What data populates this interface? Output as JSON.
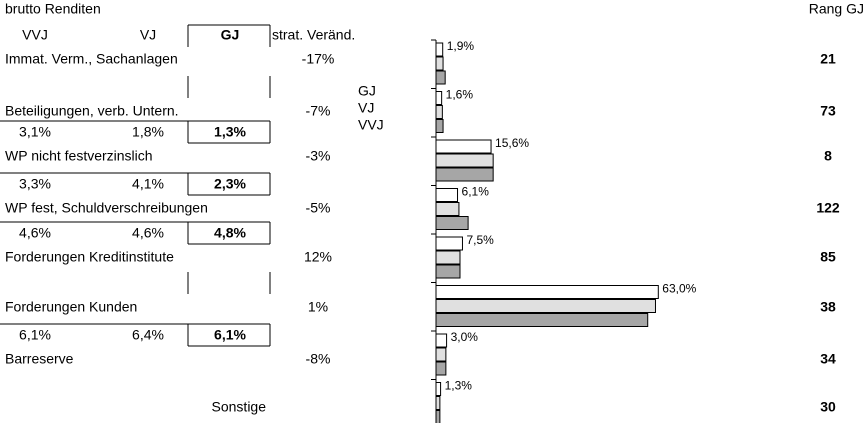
{
  "header": {
    "title": "brutto Renditen",
    "rank_title": "Rang GJ"
  },
  "columns": [
    "VVJ",
    "VJ",
    "GJ",
    "strat. Veränd."
  ],
  "legend": [
    {
      "name": "GJ",
      "color": "#ffffff"
    },
    {
      "name": "VJ",
      "color": "#e0e0e0"
    },
    {
      "name": "VVJ",
      "color": "#a6a6a6"
    }
  ],
  "xlim": [
    0,
    70
  ],
  "rows": [
    {
      "label": "Immat. Verm., Sachanlagen",
      "strat": "-17%",
      "bars": [
        1.9,
        2.0,
        2.6
      ],
      "value_label": "1,9%",
      "rank": "21"
    },
    {
      "label": "Beteiligungen, verb. Untern.",
      "strat": "-7%",
      "bars": [
        1.6,
        1.8,
        2.0
      ],
      "value_label": "1,6%",
      "rank": "73"
    },
    {
      "label": "WP nicht festverzinslich",
      "returns": [
        "3,1%",
        "1,8%",
        "1,3%"
      ],
      "strat": "-3%",
      "bars": [
        15.6,
        16.2,
        16.2
      ],
      "value_label": "15,6%",
      "rank": "8"
    },
    {
      "label": "WP fest, Schuldverschreibungen",
      "returns": [
        "3,3%",
        "4,1%",
        "2,3%"
      ],
      "strat": "-5%",
      "bars": [
        6.1,
        6.5,
        9.1
      ],
      "value_label": "6,1%",
      "rank": "122"
    },
    {
      "label": "Forderungen Kreditinstitute",
      "returns": [
        "4,6%",
        "4,6%",
        "4,8%"
      ],
      "strat": "12%",
      "bars": [
        7.5,
        6.8,
        6.8
      ],
      "value_label": "7,5%",
      "rank": "85"
    },
    {
      "label": "Forderungen Kunden",
      "strat": "1%",
      "bars": [
        63.0,
        62.2,
        60.0
      ],
      "value_label": "63,0%",
      "rank": "38"
    },
    {
      "label": "Barreserve",
      "returns": [
        "6,1%",
        "6,4%",
        "6,1%"
      ],
      "strat": "-8%",
      "bars": [
        3.0,
        2.8,
        2.8
      ],
      "value_label": "3,0%",
      "rank": "34"
    },
    {
      "label": "Sonstige",
      "bars": [
        1.3,
        1.1,
        1.1
      ],
      "value_label": "1,3%",
      "rank": "30"
    }
  ]
}
